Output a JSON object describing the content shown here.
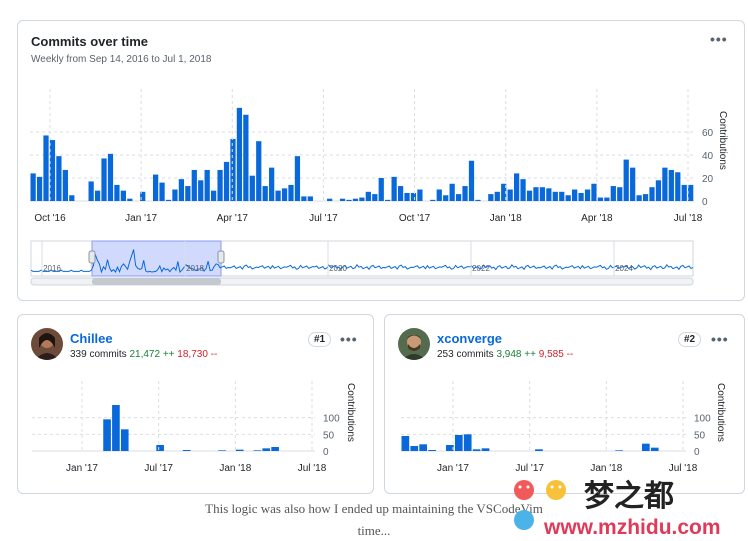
{
  "main": {
    "title": "Commits over time",
    "subtitle": "Weekly from Sep 14, 2016 to Jul 1, 2018"
  },
  "contributors": [
    {
      "name": "Chillee",
      "commits": "339 commits",
      "additions": "21,472 ++",
      "deletions": "18,730 --",
      "rank": "#1"
    },
    {
      "name": "xconverge",
      "commits": "253 commits",
      "additions": "3,948 ++",
      "deletions": "9,585 --",
      "rank": "#2"
    }
  ],
  "caption": {
    "line1": "This logic was also how I ended up maintaining the VSCodeVim",
    "line2": "time..."
  },
  "watermark": {
    "text": "梦之都",
    "url": "www.mzhidu.com"
  },
  "colors": {
    "bar": "#0969da",
    "brush": "#c6d0fb",
    "grid": "#d8dee4"
  },
  "chart_data": [
    {
      "type": "bar",
      "title": "Commits over time",
      "subtitle": "Weekly from Sep 14, 2016 to Jul 1, 2018",
      "ylabel": "Contributions",
      "ylim": [
        0,
        80
      ],
      "yticks": [
        0,
        20,
        40,
        60
      ],
      "xticks": [
        "Oct '16",
        "Jan '17",
        "Apr '17",
        "Jul '17",
        "Oct '17",
        "Jan '18",
        "Apr '18",
        "Jul '18"
      ],
      "values": [
        24,
        21,
        57,
        53,
        39,
        27,
        5,
        0,
        0,
        17,
        9,
        37,
        41,
        14,
        9,
        2,
        0,
        8,
        0,
        23,
        16,
        1,
        10,
        19,
        13,
        27,
        18,
        27,
        9,
        27,
        34,
        54,
        81,
        75,
        22,
        52,
        13,
        29,
        9,
        11,
        14,
        39,
        4,
        4,
        0,
        0,
        2,
        0,
        2,
        1,
        2,
        3,
        8,
        6,
        20,
        1,
        21,
        13,
        7,
        7,
        10,
        0,
        1,
        10,
        5,
        15,
        6,
        13,
        35,
        1,
        0,
        6,
        8,
        15,
        10,
        24,
        19,
        9,
        12,
        12,
        11,
        8,
        8,
        5,
        10,
        7,
        10,
        15,
        3,
        3,
        13,
        12,
        36,
        29,
        5,
        6,
        12,
        18,
        29,
        27,
        25,
        14,
        14
      ],
      "overview_ticks": [
        "2016",
        "2018",
        "2020",
        "2022",
        "2024"
      ]
    },
    {
      "type": "bar",
      "ylabel": "Contributions",
      "ylim": [
        0,
        150
      ],
      "yticks": [
        0,
        50,
        100
      ],
      "xticks": [
        "Jan '17",
        "Jul '17",
        "Jan '18",
        "Jul '18"
      ],
      "values": [
        0,
        0,
        0,
        0,
        0,
        0,
        0,
        0,
        95,
        138,
        65,
        0,
        0,
        0,
        18,
        0,
        0,
        3,
        0,
        0,
        0,
        2,
        0,
        4,
        0,
        2,
        8,
        12,
        0,
        0,
        0,
        0
      ]
    },
    {
      "type": "bar",
      "ylabel": "Contributions",
      "ylim": [
        0,
        150
      ],
      "yticks": [
        0,
        50,
        100
      ],
      "xticks": [
        "Jan '17",
        "Jul '17",
        "Jan '18",
        "Jul '18"
      ],
      "values": [
        45,
        15,
        20,
        3,
        0,
        18,
        48,
        50,
        5,
        8,
        0,
        0,
        0,
        0,
        0,
        5,
        0,
        0,
        0,
        0,
        0,
        0,
        0,
        0,
        2,
        0,
        0,
        22,
        10,
        0,
        0,
        0
      ]
    }
  ]
}
